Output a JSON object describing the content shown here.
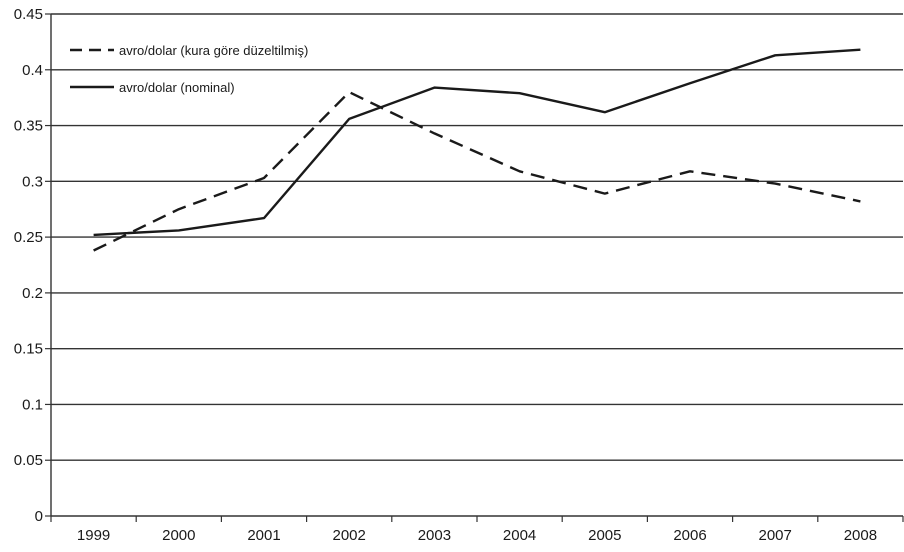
{
  "chart_data": {
    "type": "line",
    "title": "",
    "xlabel": "",
    "ylabel": "",
    "categories": [
      "1999",
      "2000",
      "2001",
      "2002",
      "2003",
      "2004",
      "2005",
      "2006",
      "2007",
      "2008"
    ],
    "ylim": [
      0,
      0.45
    ],
    "yticks": [
      0,
      0.05,
      0.1,
      0.15,
      0.2,
      0.25,
      0.3,
      0.35,
      0.4,
      0.45
    ],
    "ytick_labels": [
      "0",
      "0.05",
      "0.1",
      "0.15",
      "0.2",
      "0.25",
      "0.3",
      "0.35",
      "0.4",
      "0.45"
    ],
    "grid": "horizontal",
    "legend_position": "top-left",
    "series": [
      {
        "name": "avro/dolar (kura göre düzeltilmiş)",
        "style": "dashed",
        "color": "#1a1a1a",
        "values": [
          0.238,
          0.275,
          0.303,
          0.38,
          0.343,
          0.309,
          0.289,
          0.309,
          0.298,
          0.282
        ]
      },
      {
        "name": "avro/dolar (nominal)",
        "style": "solid",
        "color": "#1a1a1a",
        "values": [
          0.252,
          0.256,
          0.267,
          0.356,
          0.384,
          0.379,
          0.362,
          0.388,
          0.413,
          0.418
        ]
      }
    ]
  }
}
